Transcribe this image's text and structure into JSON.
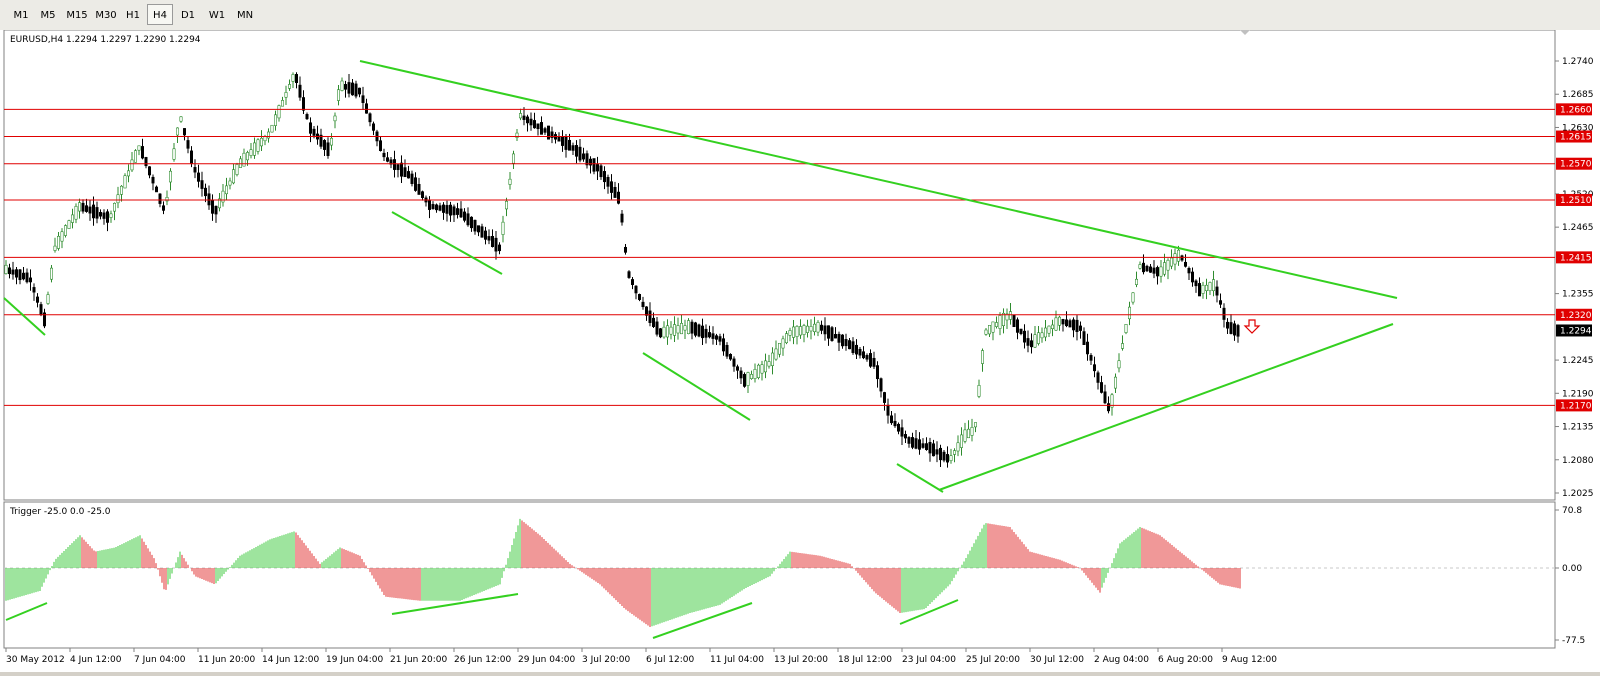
{
  "toolbar": {
    "timeframes": [
      "M1",
      "M5",
      "M15",
      "M30",
      "H1",
      "H4",
      "D1",
      "W1",
      "MN"
    ],
    "active": "H4"
  },
  "chart": {
    "symbol_line": "EURUSD,H4  1.2294 1.2297 1.2290 1.2294",
    "price_ticks": [
      "1.2740",
      "1.2685",
      "1.2630",
      "1.2520",
      "1.2465",
      "1.2355",
      "1.2245",
      "1.2190",
      "1.2135",
      "1.2080",
      "1.2025"
    ],
    "levels": [
      {
        "value": 1.266,
        "label": "1.2660"
      },
      {
        "value": 1.2615,
        "label": "1.2615"
      },
      {
        "value": 1.257,
        "label": "1.2570"
      },
      {
        "value": 1.251,
        "label": "1.2510"
      },
      {
        "value": 1.2415,
        "label": "1.2415"
      },
      {
        "value": 1.232,
        "label": "1.2320"
      },
      {
        "value": 1.217,
        "label": "1.2170"
      }
    ],
    "current_price": {
      "value": 1.2294,
      "label": "1.2294"
    },
    "colors": {
      "level_line": "#e00000",
      "trend_line": "#34d020",
      "up_candle": "#2e8b2e",
      "down_candle": "#000000",
      "label_bg": "#e00000",
      "current_bg": "#000000"
    }
  },
  "indicator": {
    "title": "Trigger -25.0 0.0 -25.0",
    "ticks": [
      "70.8",
      "0.00",
      "-77.5"
    ],
    "colors": {
      "positive": "#3cc83c",
      "negative": "#e03030"
    }
  },
  "time_axis": {
    "labels": [
      "30 May 2012",
      "4 Jun 12:00",
      "7 Jun 04:00",
      "11 Jun 20:00",
      "14 Jun 12:00",
      "19 Jun 04:00",
      "21 Jun 20:00",
      "26 Jun 12:00",
      "29 Jun 04:00",
      "3 Jul 20:00",
      "6 Jul 12:00",
      "11 Jul 04:00",
      "13 Jul 20:00",
      "18 Jul 12:00",
      "23 Jul 04:00",
      "25 Jul 20:00",
      "30 Jul 12:00",
      "2 Aug 04:00",
      "6 Aug 20:00",
      "9 Aug 12:00"
    ]
  }
}
